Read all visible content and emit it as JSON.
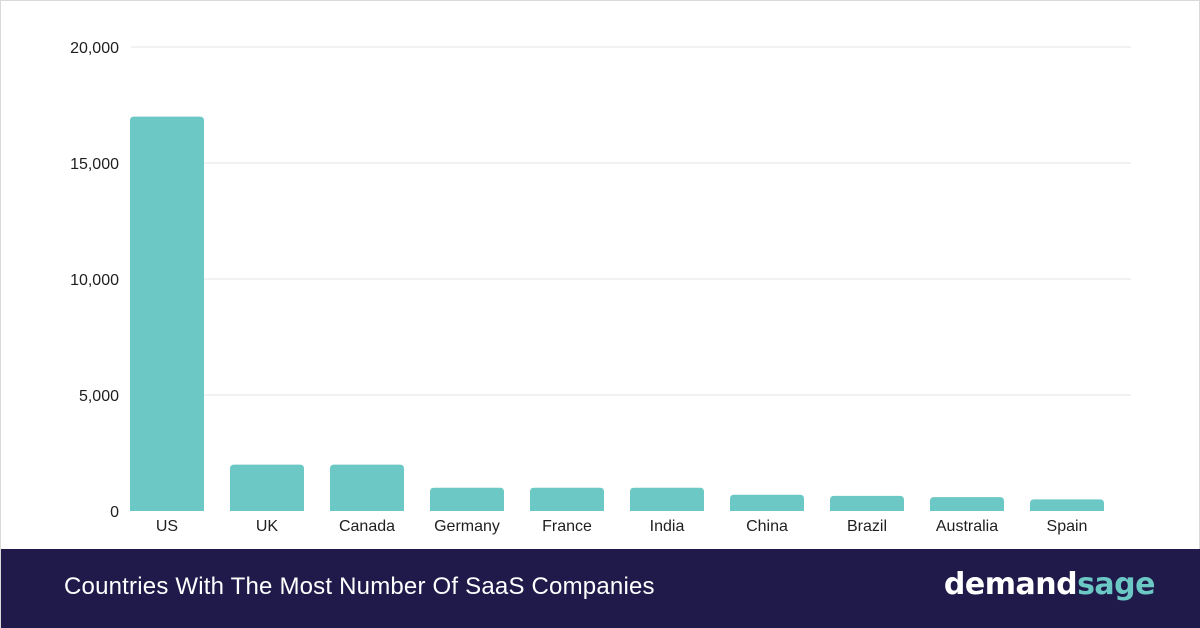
{
  "chart_data": {
    "type": "bar",
    "categories": [
      "US",
      "UK",
      "Canada",
      "Germany",
      "France",
      "India",
      "China",
      "Brazil",
      "Australia",
      "Spain"
    ],
    "values": [
      17000,
      2000,
      2000,
      1000,
      1000,
      1000,
      700,
      650,
      600,
      500
    ],
    "title": "Countries With The Most Number Of SaaS Companies",
    "xlabel": "",
    "ylabel": "",
    "ylim": [
      0,
      20000
    ],
    "yticks": [
      0,
      5000,
      10000,
      15000,
      20000
    ],
    "ytick_labels": [
      "0",
      "5,000",
      "10,000",
      "15,000",
      "20,000"
    ],
    "grid": true,
    "legend": "none",
    "bar_color": "#6cc8c5"
  },
  "footer": {
    "title": "Countries With The Most Number Of SaaS Companies",
    "brand_part1": "demand",
    "brand_part2": "sage",
    "background_color": "#1f1a4a",
    "brand_accent_color": "#6cc8c5"
  }
}
